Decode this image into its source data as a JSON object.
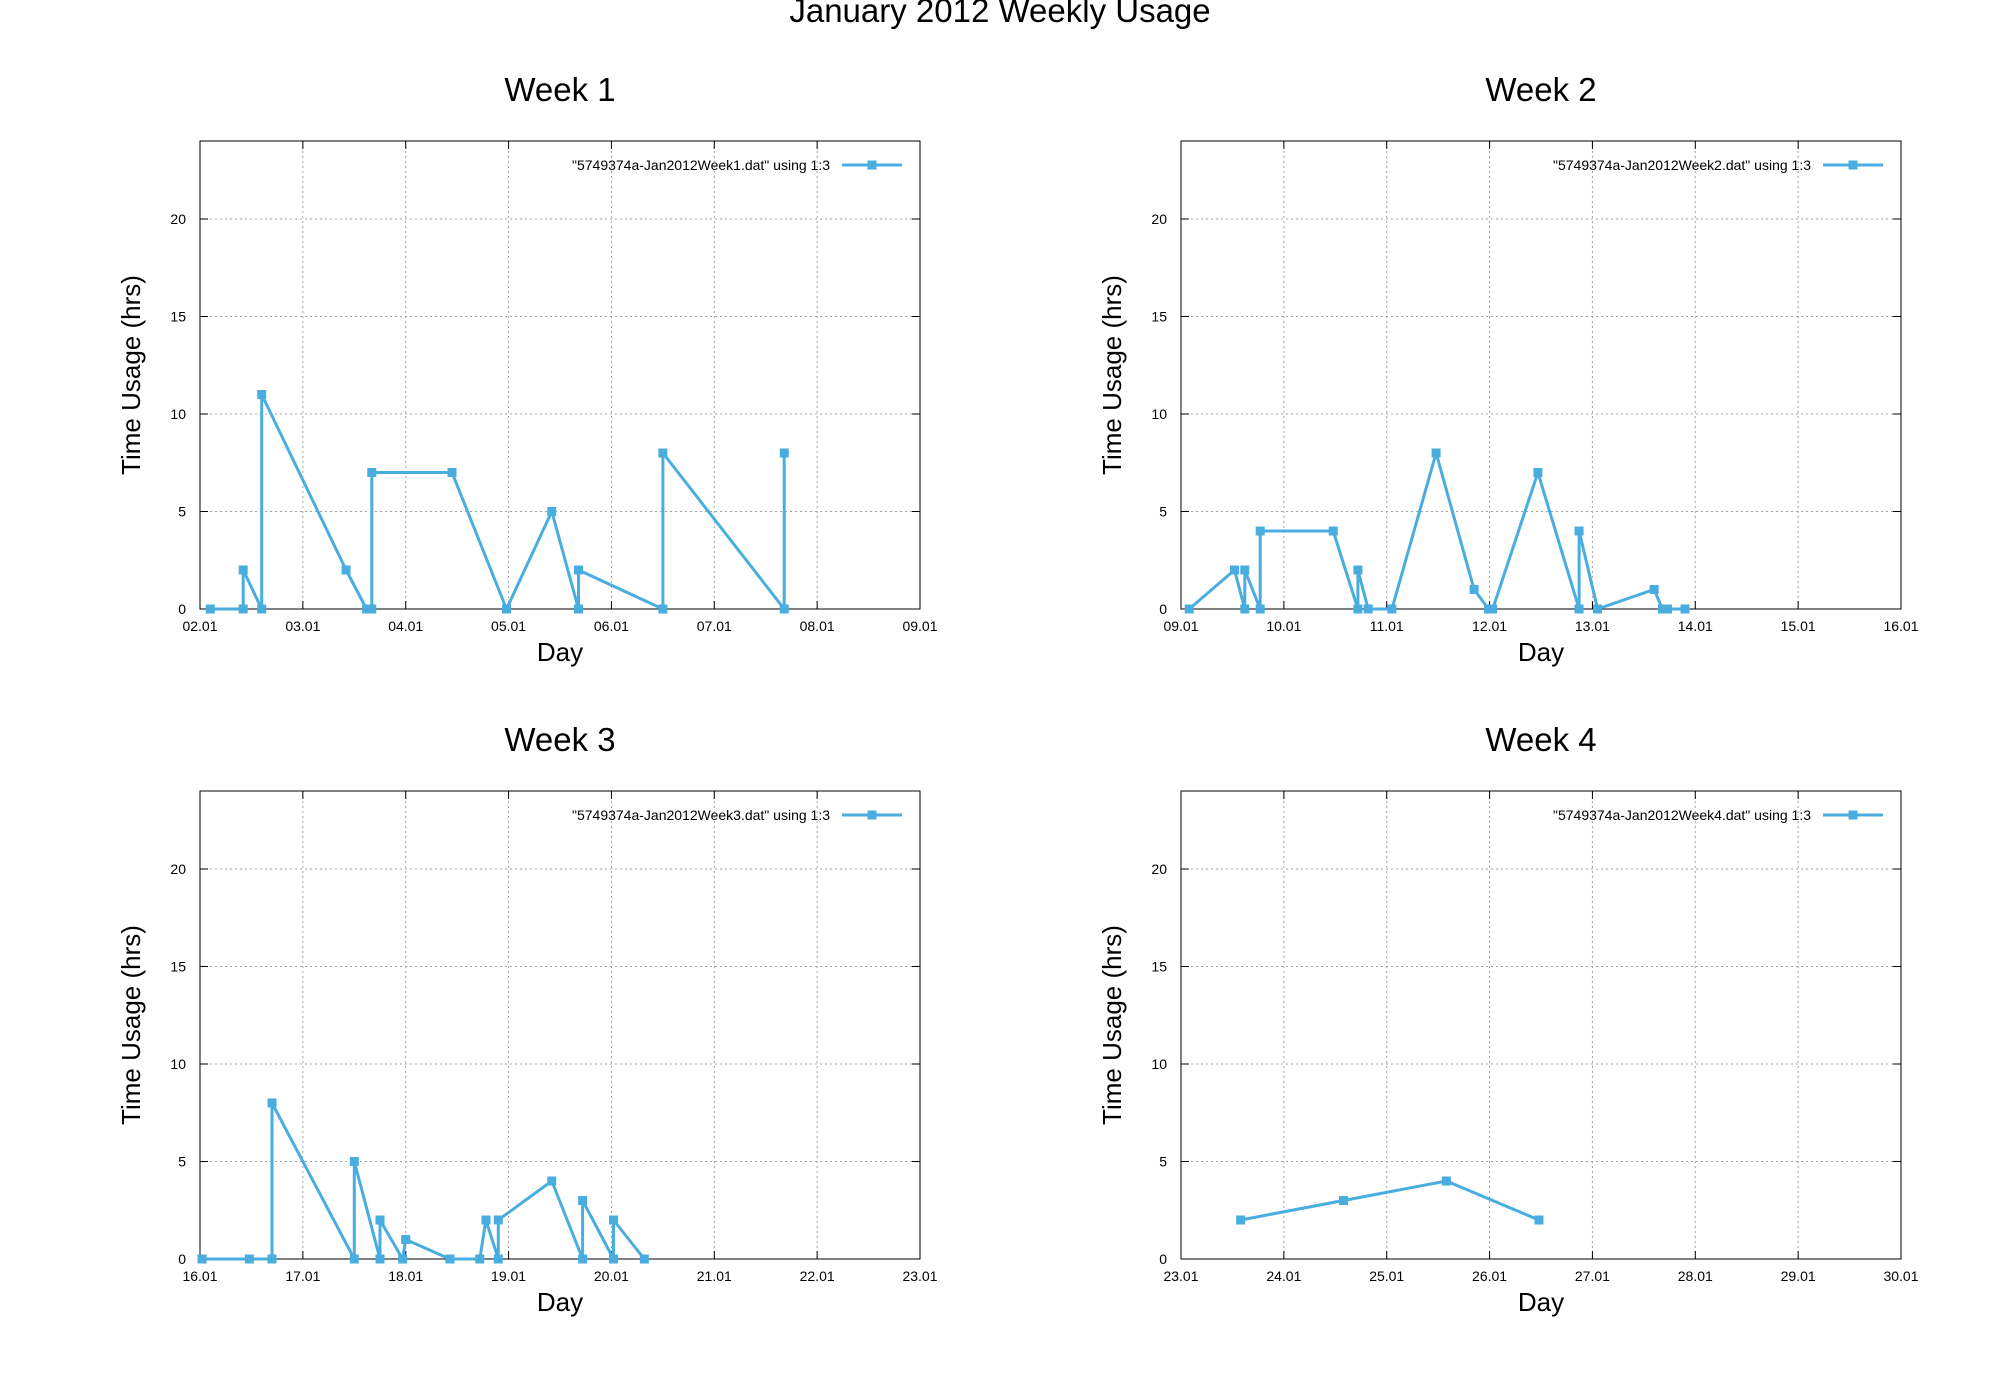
{
  "title": "January 2012 Weekly Usage",
  "series_color": "#4aade0",
  "chart_data": [
    {
      "type": "line",
      "title": "Week 1",
      "xlabel": "Day",
      "ylabel": "Time Usage (hrs)",
      "x_ticks": [
        "02.01",
        "03.01",
        "04.01",
        "05.01",
        "06.01",
        "07.01",
        "08.01",
        "09.01"
      ],
      "y_ticks": [
        "0",
        "5",
        "10",
        "15",
        "20"
      ],
      "xlim": [
        2.0,
        9.0
      ],
      "ylim": [
        0,
        24
      ],
      "grid": true,
      "legend_position": "top-right",
      "series": [
        {
          "name": "\"5749374a-Jan2012Week1.dat\" using 1:3",
          "x": [
            2.1,
            2.42,
            2.42,
            2.6,
            2.6,
            3.42,
            3.62,
            3.67,
            3.67,
            4.45,
            4.98,
            5.42,
            5.68,
            5.68,
            6.5,
            6.5,
            7.68,
            7.68
          ],
          "y": [
            0,
            0,
            2,
            0,
            11,
            2,
            0,
            0,
            7,
            7,
            0,
            5,
            0,
            2,
            0,
            8,
            0,
            8
          ]
        }
      ]
    },
    {
      "type": "line",
      "title": "Week 2",
      "xlabel": "Day",
      "ylabel": "Time Usage (hrs)",
      "x_ticks": [
        "09.01",
        "10.01",
        "11.01",
        "12.01",
        "13.01",
        "14.01",
        "15.01",
        "16.01"
      ],
      "y_ticks": [
        "0",
        "5",
        "10",
        "15",
        "20"
      ],
      "xlim": [
        9.0,
        16.0
      ],
      "ylim": [
        0,
        24
      ],
      "grid": true,
      "legend_position": "top-right",
      "series": [
        {
          "name": "\"5749374a-Jan2012Week2.dat\" using 1:3",
          "x": [
            9.08,
            9.52,
            9.62,
            9.62,
            9.77,
            9.77,
            10.48,
            10.72,
            10.72,
            10.82,
            11.05,
            11.48,
            11.85,
            11.99,
            12.03,
            12.47,
            12.87,
            12.87,
            13.05,
            13.6,
            13.68,
            13.73,
            13.9
          ],
          "y": [
            0,
            2,
            0,
            2,
            0,
            4,
            4,
            0,
            2,
            0,
            0,
            8,
            1,
            0,
            0,
            7,
            0,
            4,
            0,
            1,
            0,
            0,
            0
          ]
        }
      ]
    },
    {
      "type": "line",
      "title": "Week 3",
      "xlabel": "Day",
      "ylabel": "Time Usage (hrs)",
      "x_ticks": [
        "16.01",
        "17.01",
        "18.01",
        "19.01",
        "20.01",
        "21.01",
        "22.01",
        "23.01"
      ],
      "y_ticks": [
        "0",
        "5",
        "10",
        "15",
        "20"
      ],
      "xlim": [
        16.0,
        23.0
      ],
      "ylim": [
        0,
        24
      ],
      "grid": true,
      "legend_position": "top-right",
      "series": [
        {
          "name": "\"5749374a-Jan2012Week3.dat\" using 1:3",
          "x": [
            16.02,
            16.48,
            16.7,
            16.7,
            17.5,
            17.5,
            17.75,
            17.75,
            17.97,
            18.0,
            18.43,
            18.72,
            18.78,
            18.9,
            18.9,
            19.42,
            19.72,
            19.72,
            20.02,
            20.02,
            20.32
          ],
          "y": [
            0,
            0,
            0,
            8,
            0,
            5,
            0,
            2,
            0,
            1,
            0,
            0,
            2,
            0,
            2,
            4,
            0,
            3,
            0,
            2,
            0
          ]
        }
      ]
    },
    {
      "type": "line",
      "title": "Week 4",
      "xlabel": "Day",
      "ylabel": "Time Usage (hrs)",
      "x_ticks": [
        "23.01",
        "24.01",
        "25.01",
        "26.01",
        "27.01",
        "28.01",
        "29.01",
        "30.01"
      ],
      "y_ticks": [
        "0",
        "5",
        "10",
        "15",
        "20"
      ],
      "xlim": [
        23.0,
        30.0
      ],
      "ylim": [
        0,
        24
      ],
      "grid": true,
      "legend_position": "top-right",
      "series": [
        {
          "name": "\"5749374a-Jan2012Week4.dat\" using 1:3",
          "x": [
            23.58,
            24.58,
            25.58,
            26.48
          ],
          "y": [
            2,
            3,
            4,
            2
          ]
        }
      ]
    }
  ]
}
